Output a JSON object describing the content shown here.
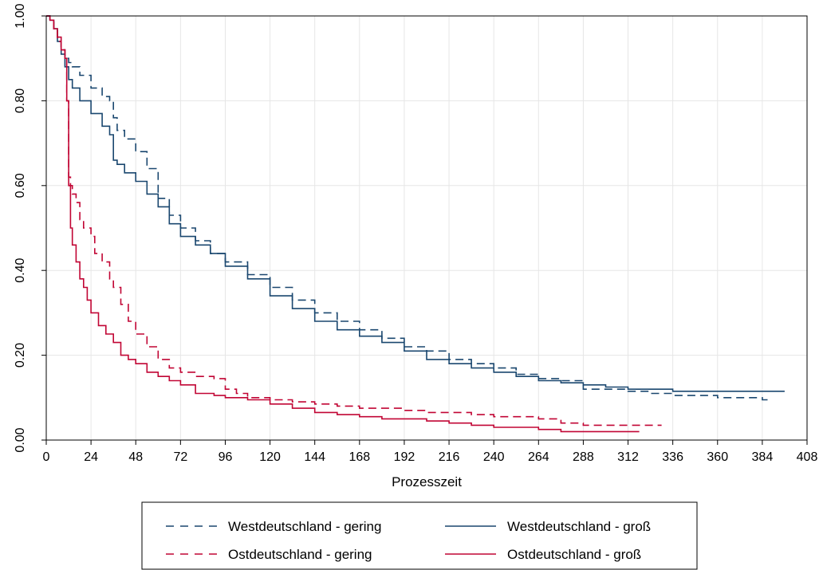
{
  "chart_data": {
    "type": "line",
    "title": "",
    "xlabel": "Prozesszeit",
    "ylabel": "",
    "xlim": [
      0,
      408
    ],
    "ylim": [
      0,
      1
    ],
    "xticks": [
      0,
      24,
      48,
      72,
      96,
      120,
      144,
      168,
      192,
      216,
      240,
      264,
      288,
      312,
      336,
      360,
      384,
      408
    ],
    "yticks": [
      0,
      0.2,
      0.4,
      0.6,
      0.8,
      1.0
    ],
    "ytick_labels": [
      "0.00",
      "0.20",
      "0.40",
      "0.60",
      "0.80",
      "1.00"
    ],
    "grid": true,
    "legend_position": "bottom",
    "series": [
      {
        "name": "Westdeutschland - gering",
        "color": "#1a476f",
        "dash": "dashed",
        "x": [
          0,
          2,
          4,
          6,
          8,
          10,
          12,
          14,
          18,
          24,
          30,
          34,
          36,
          38,
          42,
          48,
          54,
          60,
          66,
          72,
          80,
          88,
          96,
          108,
          120,
          132,
          144,
          156,
          168,
          180,
          192,
          204,
          216,
          228,
          240,
          252,
          264,
          276,
          288,
          300,
          312,
          324,
          336,
          348,
          360,
          372,
          384,
          388
        ],
        "y": [
          1.0,
          0.99,
          0.97,
          0.95,
          0.92,
          0.9,
          0.89,
          0.88,
          0.86,
          0.83,
          0.81,
          0.8,
          0.76,
          0.73,
          0.71,
          0.68,
          0.64,
          0.57,
          0.53,
          0.5,
          0.47,
          0.44,
          0.42,
          0.39,
          0.36,
          0.33,
          0.3,
          0.28,
          0.26,
          0.24,
          0.22,
          0.21,
          0.19,
          0.18,
          0.17,
          0.155,
          0.145,
          0.14,
          0.12,
          0.12,
          0.115,
          0.11,
          0.105,
          0.105,
          0.1,
          0.1,
          0.095,
          0.095
        ]
      },
      {
        "name": "Westdeutschland - groß",
        "color": "#1a476f",
        "dash": "solid",
        "x": [
          0,
          2,
          4,
          6,
          8,
          10,
          12,
          14,
          18,
          24,
          30,
          34,
          36,
          38,
          42,
          48,
          54,
          60,
          66,
          72,
          80,
          88,
          96,
          108,
          120,
          132,
          144,
          156,
          168,
          180,
          192,
          204,
          216,
          228,
          240,
          252,
          264,
          276,
          288,
          300,
          312,
          324,
          336,
          348,
          360,
          372,
          384,
          396
        ],
        "y": [
          1.0,
          0.99,
          0.97,
          0.94,
          0.91,
          0.88,
          0.85,
          0.83,
          0.8,
          0.77,
          0.74,
          0.72,
          0.66,
          0.65,
          0.63,
          0.61,
          0.58,
          0.55,
          0.51,
          0.48,
          0.46,
          0.44,
          0.41,
          0.38,
          0.34,
          0.31,
          0.28,
          0.26,
          0.245,
          0.23,
          0.21,
          0.19,
          0.18,
          0.17,
          0.16,
          0.15,
          0.14,
          0.135,
          0.13,
          0.125,
          0.12,
          0.12,
          0.115,
          0.115,
          0.115,
          0.115,
          0.115,
          0.115
        ]
      },
      {
        "name": "Ostdeutschland - gering",
        "color": "#c10534",
        "dash": "dashed",
        "x": [
          0,
          2,
          4,
          6,
          8,
          10,
          11,
          12,
          13,
          14,
          16,
          18,
          20,
          24,
          26,
          30,
          34,
          36,
          40,
          44,
          48,
          54,
          60,
          66,
          72,
          80,
          90,
          96,
          102,
          108,
          120,
          132,
          144,
          156,
          168,
          180,
          192,
          204,
          216,
          228,
          240,
          252,
          264,
          276,
          288,
          300,
          312,
          324,
          330
        ],
        "y": [
          1.0,
          0.99,
          0.97,
          0.94,
          0.92,
          0.9,
          0.8,
          0.62,
          0.6,
          0.58,
          0.56,
          0.52,
          0.5,
          0.48,
          0.44,
          0.42,
          0.38,
          0.36,
          0.32,
          0.28,
          0.25,
          0.22,
          0.19,
          0.17,
          0.16,
          0.15,
          0.145,
          0.12,
          0.11,
          0.1,
          0.095,
          0.09,
          0.085,
          0.08,
          0.075,
          0.075,
          0.07,
          0.065,
          0.065,
          0.06,
          0.055,
          0.055,
          0.05,
          0.04,
          0.035,
          0.035,
          0.035,
          0.035,
          0.035
        ]
      },
      {
        "name": "Ostdeutschland - groß",
        "color": "#c10534",
        "dash": "solid",
        "x": [
          0,
          2,
          4,
          6,
          8,
          10,
          11,
          12,
          13,
          14,
          16,
          18,
          20,
          22,
          24,
          28,
          32,
          36,
          40,
          44,
          48,
          54,
          60,
          66,
          72,
          80,
          90,
          96,
          108,
          120,
          132,
          144,
          156,
          168,
          180,
          192,
          204,
          216,
          228,
          240,
          252,
          264,
          276,
          288,
          300,
          312,
          318
        ],
        "y": [
          1.0,
          0.99,
          0.97,
          0.95,
          0.92,
          0.9,
          0.8,
          0.6,
          0.5,
          0.46,
          0.42,
          0.38,
          0.36,
          0.33,
          0.3,
          0.27,
          0.25,
          0.23,
          0.2,
          0.19,
          0.18,
          0.16,
          0.15,
          0.14,
          0.13,
          0.11,
          0.105,
          0.1,
          0.095,
          0.085,
          0.075,
          0.065,
          0.06,
          0.055,
          0.05,
          0.05,
          0.045,
          0.04,
          0.035,
          0.03,
          0.03,
          0.025,
          0.02,
          0.02,
          0.02,
          0.02,
          0.02
        ]
      }
    ]
  }
}
